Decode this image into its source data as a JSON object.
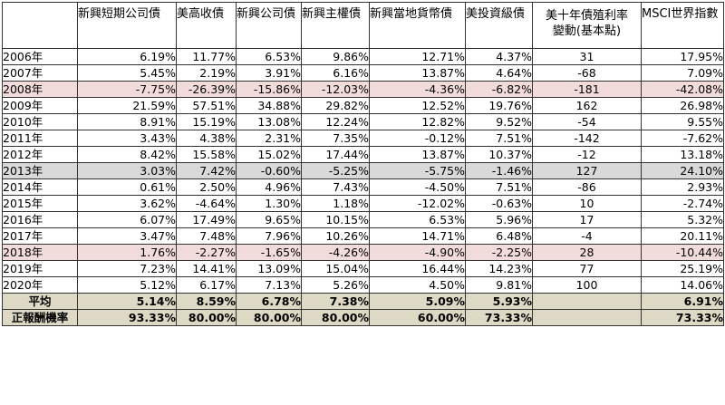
{
  "headers": [
    "",
    "新興短期公司債",
    "美高收債",
    "新興公司債",
    "新興主權債",
    "新興當地貨幣債",
    "美投資級債",
    "美十年債殖利率變動(基本點)",
    "MSCI世界指數"
  ],
  "header_rate_lines": [
    "美十年債殖利率",
    "變動(基本點)"
  ],
  "rows": [
    {
      "year": "2006年",
      "vals": [
        "6.19%",
        "11.77%",
        "6.53%",
        "9.86%",
        "12.71%",
        "4.37%",
        "31",
        "17.95%"
      ],
      "style": ""
    },
    {
      "year": "2007年",
      "vals": [
        "5.45%",
        "2.19%",
        "3.91%",
        "6.16%",
        "13.87%",
        "4.64%",
        "-68",
        "7.09%"
      ],
      "style": ""
    },
    {
      "year": "2008年",
      "vals": [
        "-7.75%",
        "-26.39%",
        "-15.86%",
        "-12.03%",
        "-4.36%",
        "-6.82%",
        "-181",
        "-42.08%"
      ],
      "style": "pink"
    },
    {
      "year": "2009年",
      "vals": [
        "21.59%",
        "57.51%",
        "34.88%",
        "29.82%",
        "12.52%",
        "19.76%",
        "162",
        "26.98%"
      ],
      "style": ""
    },
    {
      "year": "2010年",
      "vals": [
        "8.91%",
        "15.19%",
        "13.08%",
        "12.24%",
        "12.82%",
        "9.52%",
        "-54",
        "9.55%"
      ],
      "style": ""
    },
    {
      "year": "2011年",
      "vals": [
        "3.43%",
        "4.38%",
        "2.31%",
        "7.35%",
        "-0.12%",
        "7.51%",
        "-142",
        "-7.62%"
      ],
      "style": ""
    },
    {
      "year": "2012年",
      "vals": [
        "8.42%",
        "15.58%",
        "15.02%",
        "17.44%",
        "13.87%",
        "10.37%",
        "-12",
        "13.18%"
      ],
      "style": ""
    },
    {
      "year": "2013年",
      "vals": [
        "3.03%",
        "7.42%",
        "-0.60%",
        "-5.25%",
        "-5.75%",
        "-1.46%",
        "127",
        "24.10%"
      ],
      "style": "gray"
    },
    {
      "year": "2014年",
      "vals": [
        "0.61%",
        "2.50%",
        "4.96%",
        "7.43%",
        "-4.50%",
        "7.51%",
        "-86",
        "2.93%"
      ],
      "style": ""
    },
    {
      "year": "2015年",
      "vals": [
        "3.62%",
        "-4.64%",
        "1.30%",
        "1.18%",
        "-12.02%",
        "-0.63%",
        "10",
        "-2.74%"
      ],
      "style": ""
    },
    {
      "year": "2016年",
      "vals": [
        "6.07%",
        "17.49%",
        "9.65%",
        "10.15%",
        "6.53%",
        "5.96%",
        "17",
        "5.32%"
      ],
      "style": ""
    },
    {
      "year": "2017年",
      "vals": [
        "3.47%",
        "7.48%",
        "7.96%",
        "10.26%",
        "14.71%",
        "6.48%",
        "-4",
        "20.11%"
      ],
      "style": ""
    },
    {
      "year": "2018年",
      "vals": [
        "1.76%",
        "-2.27%",
        "-1.65%",
        "-4.26%",
        "-4.90%",
        "-2.25%",
        "28",
        "-10.44%"
      ],
      "style": "pink"
    },
    {
      "year": "2019年",
      "vals": [
        "7.23%",
        "14.41%",
        "13.09%",
        "15.04%",
        "16.44%",
        "14.23%",
        "77",
        "25.19%"
      ],
      "style": ""
    },
    {
      "year": "2020年",
      "vals": [
        "5.12%",
        "6.17%",
        "7.13%",
        "5.26%",
        "4.50%",
        "9.81%",
        "100",
        "14.06%"
      ],
      "style": ""
    }
  ],
  "average": {
    "label": "平均",
    "vals": [
      "5.14%",
      "8.59%",
      "6.78%",
      "7.38%",
      "5.09%",
      "5.93%",
      "",
      "6.91%"
    ]
  },
  "positive_ratio": {
    "label": "正報酬機率",
    "vals": [
      "93.33%",
      "80.00%",
      "80.00%",
      "80.00%",
      "60.00%",
      "73.33%",
      "",
      "73.33%"
    ]
  },
  "colors": {
    "highlight_pink": "#f2dcdb",
    "highlight_gray": "#d9d9d9",
    "summary_tan": "#ddd9c4"
  }
}
